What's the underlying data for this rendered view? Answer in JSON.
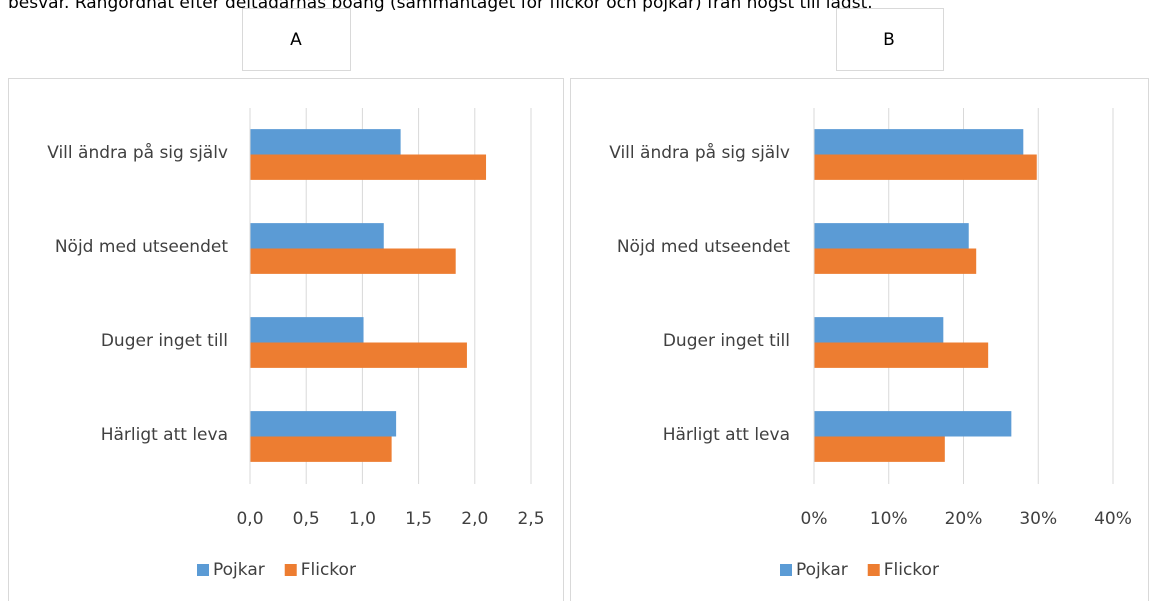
{
  "caption": "besvar. Rangordnat efter deltagarnas poäng (sammantaget för flickor och pojkar) från högst till lägst.",
  "chart_data": [
    {
      "type": "bar",
      "orientation": "horizontal",
      "title": "A",
      "categories": [
        "Vill ändra på sig själv",
        "Nöjd med utseendet",
        "Duger inget till",
        "Härligt att leva"
      ],
      "series": [
        {
          "name": "Pojkar",
          "color": "#5b9bd5",
          "values": [
            1.34,
            1.19,
            1.01,
            1.3
          ]
        },
        {
          "name": "Flickor",
          "color": "#ed7d31",
          "values": [
            2.1,
            1.83,
            1.93,
            1.26
          ]
        }
      ],
      "xlim": [
        0,
        2.5
      ],
      "xticks": [
        {
          "value": 0,
          "label": "0,0"
        },
        {
          "value": 0.5,
          "label": "0,5"
        },
        {
          "value": 1,
          "label": "1,0"
        },
        {
          "value": 1.5,
          "label": "1,5"
        },
        {
          "value": 2,
          "label": "2,0"
        },
        {
          "value": 2.5,
          "label": "2,5"
        }
      ],
      "grid": true,
      "legend": "bottom"
    },
    {
      "type": "bar",
      "orientation": "horizontal",
      "title": "B",
      "categories": [
        "Vill ändra på sig själv",
        "Nöjd med utseendet",
        "Duger inget till",
        "Härligt att leva"
      ],
      "series": [
        {
          "name": "Pojkar",
          "color": "#5b9bd5",
          "values": [
            28.0,
            20.7,
            17.3,
            26.4
          ]
        },
        {
          "name": "Flickor",
          "color": "#ed7d31",
          "values": [
            29.8,
            21.7,
            23.3,
            17.5
          ]
        }
      ],
      "xlim": [
        0,
        40
      ],
      "xticks": [
        {
          "value": 0,
          "label": "0%"
        },
        {
          "value": 10,
          "label": "10%"
        },
        {
          "value": 20,
          "label": "20%"
        },
        {
          "value": 30,
          "label": "30%"
        },
        {
          "value": 40,
          "label": "40%"
        }
      ],
      "grid": true,
      "legend": "bottom"
    }
  ]
}
